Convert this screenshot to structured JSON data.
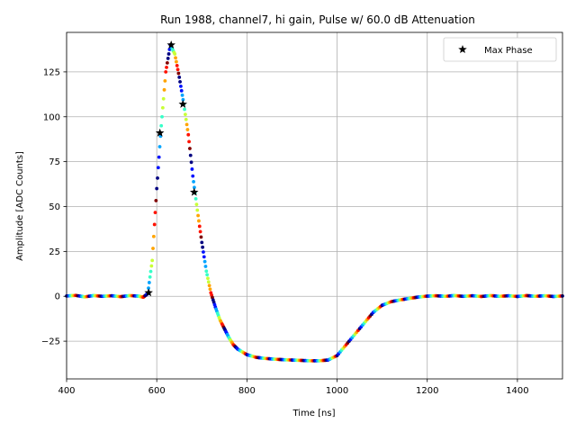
{
  "chart_data": {
    "type": "scatter",
    "title": "Run 1988, channel7, hi gain, Pulse w/ 60.0 dB Attenuation",
    "xlabel": "Time [ns]",
    "ylabel": "Amplitude [ADC Counts]",
    "xlim": [
      400,
      1500
    ],
    "ylim": [
      -46,
      147
    ],
    "xticks": [
      400,
      600,
      800,
      1000,
      1200,
      1400
    ],
    "yticks": [
      -25,
      0,
      25,
      50,
      75,
      100,
      125
    ],
    "grid": true,
    "legend": {
      "position": "top-right",
      "entries": [
        "Max Phase"
      ]
    },
    "colormap": "jet",
    "series": [
      {
        "kind": "scatter",
        "description": "waveform samples colored by phase",
        "points": [
          [
            400,
            0.2
          ],
          [
            420,
            0.5
          ],
          [
            440,
            -0.3
          ],
          [
            460,
            0.4
          ],
          [
            480,
            0.0
          ],
          [
            500,
            0.3
          ],
          [
            520,
            -0.2
          ],
          [
            540,
            0.4
          ],
          [
            560,
            0.1
          ],
          [
            570,
            -0.5
          ],
          [
            580,
            1.5
          ],
          [
            590,
            20
          ],
          [
            600,
            60
          ],
          [
            610,
            95
          ],
          [
            620,
            125
          ],
          [
            630,
            140
          ],
          [
            640,
            135
          ],
          [
            650,
            122
          ],
          [
            660,
            107
          ],
          [
            670,
            90
          ],
          [
            680,
            67
          ],
          [
            690,
            48
          ],
          [
            700,
            30
          ],
          [
            710,
            14
          ],
          [
            720,
            2
          ],
          [
            730,
            -6
          ],
          [
            740,
            -13
          ],
          [
            750,
            -18
          ],
          [
            760,
            -23
          ],
          [
            770,
            -27
          ],
          [
            780,
            -29.5
          ],
          [
            800,
            -32.5
          ],
          [
            820,
            -34
          ],
          [
            840,
            -34.6
          ],
          [
            860,
            -35
          ],
          [
            880,
            -35.3
          ],
          [
            900,
            -35.5
          ],
          [
            920,
            -35.7
          ],
          [
            940,
            -35.9
          ],
          [
            960,
            -35.9
          ],
          [
            980,
            -35.5
          ],
          [
            1000,
            -33
          ],
          [
            1020,
            -27
          ],
          [
            1040,
            -21
          ],
          [
            1060,
            -15
          ],
          [
            1080,
            -9
          ],
          [
            1100,
            -5
          ],
          [
            1120,
            -3
          ],
          [
            1140,
            -2
          ],
          [
            1160,
            -1.2
          ],
          [
            1180,
            -0.4
          ],
          [
            1200,
            0.1
          ],
          [
            1220,
            0.3
          ],
          [
            1240,
            0.0
          ],
          [
            1260,
            0.4
          ],
          [
            1280,
            0.0
          ],
          [
            1300,
            0.3
          ],
          [
            1320,
            -0.1
          ],
          [
            1340,
            0.4
          ],
          [
            1360,
            0.0
          ],
          [
            1380,
            0.3
          ],
          [
            1400,
            -0.1
          ],
          [
            1420,
            0.4
          ],
          [
            1440,
            0.0
          ],
          [
            1460,
            0.3
          ],
          [
            1480,
            -0.1
          ],
          [
            1500,
            0.2
          ]
        ]
      },
      {
        "name": "Max Phase",
        "kind": "marker",
        "marker": "star",
        "color": "#000000",
        "points": [
          [
            582,
            2
          ],
          [
            607,
            91
          ],
          [
            632,
            140
          ],
          [
            658,
            107
          ],
          [
            683,
            58
          ]
        ]
      }
    ]
  }
}
